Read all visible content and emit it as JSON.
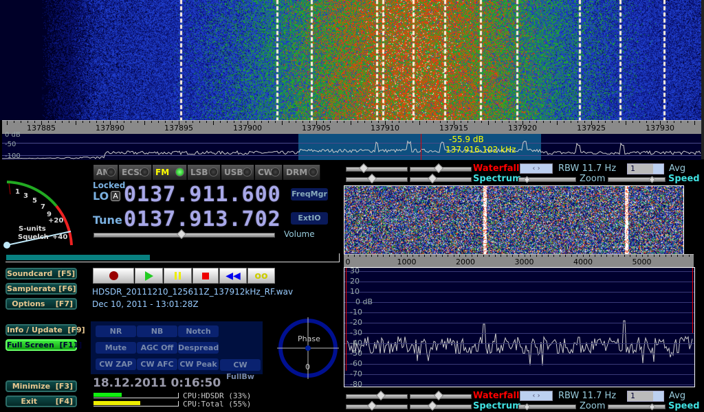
{
  "main_waterfall": {
    "freq_ticks": [
      "137885",
      "137890",
      "137895",
      "137900",
      "137905",
      "137910",
      "137915",
      "137920",
      "137925",
      "137930"
    ],
    "db_labels": [
      "0 dB",
      "-50",
      "-100"
    ],
    "cursor_readout": {
      "level": "-55.9 dB",
      "freq": "137.916.102 kHz"
    }
  },
  "modes": [
    {
      "label": "AM",
      "active": false
    },
    {
      "label": "ECSS",
      "active": false
    },
    {
      "label": "FM",
      "active": true
    },
    {
      "label": "LSB",
      "active": false
    },
    {
      "label": "USB",
      "active": false
    },
    {
      "label": "CW",
      "active": false
    },
    {
      "label": "DRM",
      "active": false
    }
  ],
  "smeter": {
    "scale": [
      "1",
      "3",
      "5",
      "7",
      "9",
      "+20",
      "+40"
    ],
    "label1": "S-units",
    "label2": "Squelch"
  },
  "lo": {
    "status": "Locked",
    "label": "LO",
    "lock_badge": "A",
    "value": "0137.911.600"
  },
  "tune": {
    "label": "Tune",
    "value": "0137.913.702"
  },
  "buttons": {
    "freqmgr": "FreqMgr",
    "extio": "ExtIO",
    "volume": "Volume"
  },
  "volume_level": 0.48,
  "playback_progress": 0.43,
  "side_buttons": [
    {
      "label": "Soundcard  [F5]"
    },
    {
      "label": "Samplerate [F6]"
    },
    {
      "label": "Options    [F7]"
    },
    {
      "label": "Info / Update  [F9]"
    },
    {
      "label": "Full Screen  [F11]",
      "active": true
    },
    {
      "label": "Minimize  [F3]"
    },
    {
      "label": "Exit       [F4]"
    }
  ],
  "recording": {
    "filename": "HDSDR_20111210_125611Z_137912kHz_RF.wav",
    "timestamp": "Dec 10, 2011 - 13:01:28Z"
  },
  "dsp_buttons": [
    "NR",
    "NB",
    "Notch",
    "Mute",
    "AGC Off",
    "Despread",
    "CW ZAP",
    "CW AFC",
    "CW Peak",
    "CW FullBw"
  ],
  "phase": {
    "label": "Phase",
    "value": "0"
  },
  "clock": "18.12.2011 0:16:50",
  "cpu": {
    "hdsdr_label": "CPU:HDSDR (33%)",
    "hdsdr": 0.33,
    "total_label": "CPU:Total (55%)",
    "total": 0.55
  },
  "audio_controls": {
    "waterfall": "Waterfall",
    "spectrum": "Spectrum",
    "rbw": "RBW 11.7 Hz",
    "avg_value": "1",
    "avg": "Avg",
    "zoom": "Zoom",
    "speed": "Speed"
  },
  "audio_axis": {
    "ticks": [
      "0",
      "1000",
      "2000",
      "3000",
      "4000",
      "5000"
    ],
    "db_labels": [
      "30",
      "20",
      "10",
      "0 dB",
      "-10",
      "-20",
      "-30",
      "-40",
      "-50",
      "-60",
      "-70",
      "-80"
    ]
  },
  "colors": {
    "waterfall_label": "#ff0000",
    "spectrum_label": "#40e0e0",
    "freq_digits": "#a8a8e8",
    "full_screen_active": "#22cc22"
  }
}
